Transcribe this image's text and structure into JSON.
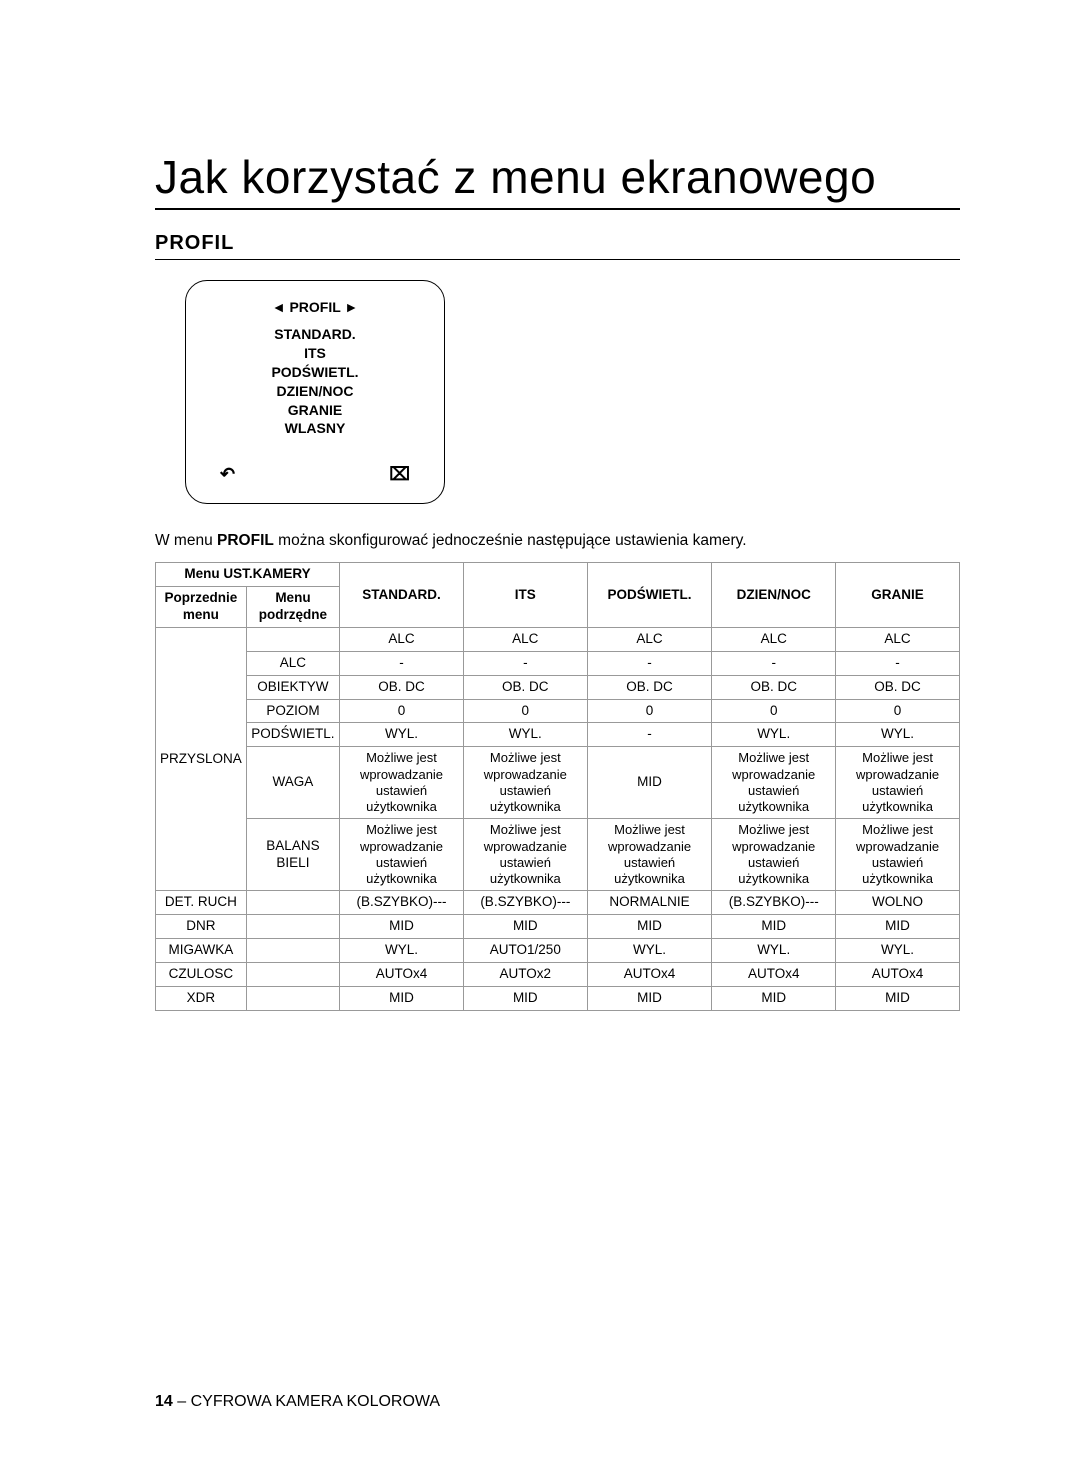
{
  "title": "Jak korzystać z menu ekranowego",
  "section_heading": "PROFIL",
  "osd": {
    "header": "◄ PROFIL ►",
    "items": "STANDARD.\nITS\nPODŚWIETL.\nDZIEN/NOC\nGRANIE\nWLASNY",
    "back_icon": "↶",
    "close_icon": "⌧"
  },
  "desc_pre": "W menu ",
  "desc_bold": "PROFIL",
  "desc_post": " można skonfigurować jednocześnie następujące ustawienia kamery.",
  "table": {
    "h_ust": "Menu UST.KAMERY",
    "h_prev_l1": "Poprzednie",
    "h_prev_l2": "menu",
    "h_sub_l1": "Menu",
    "h_sub_l2": "podrzędne",
    "h_c1": "STANDARD.",
    "h_c2": "ITS",
    "h_c3": "PODŚWIETL.",
    "h_c4": "DZIEN/NOC",
    "h_c5": "GRANIE",
    "groups": {
      "przyslona": "PRZYSLONA",
      "det_ruch": "DET. RUCH",
      "dnr": "DNR",
      "migawka": "MIGAWKA",
      "czulosc": "CZULOSC",
      "xdr": "XDR"
    },
    "subs": {
      "r0": "",
      "alc": "ALC",
      "obiektyw": "OBIEKTYW",
      "poziom": "POZIOM",
      "podswietl": "PODŚWIETL.",
      "waga": "WAGA",
      "balans": "BALANS BIELI"
    },
    "vals": {
      "alc": "ALC",
      "dash": "-",
      "obdc": "OB. DC",
      "zero": "0",
      "wyl": "WYL.",
      "multi": "Możliwe jest wprowadzanie ustawień użytkownika",
      "mid": "MID",
      "bszybko": "(B.SZYBKO)---",
      "normalnie": "NORMALNIE",
      "wolno": "WOLNO",
      "auto1250": "AUTO1/250",
      "autox4": "AUTOx4",
      "autox2": "AUTOx2"
    }
  },
  "footer_page": "14",
  "footer_text": " – CYFROWA KAMERA KOLOROWA"
}
